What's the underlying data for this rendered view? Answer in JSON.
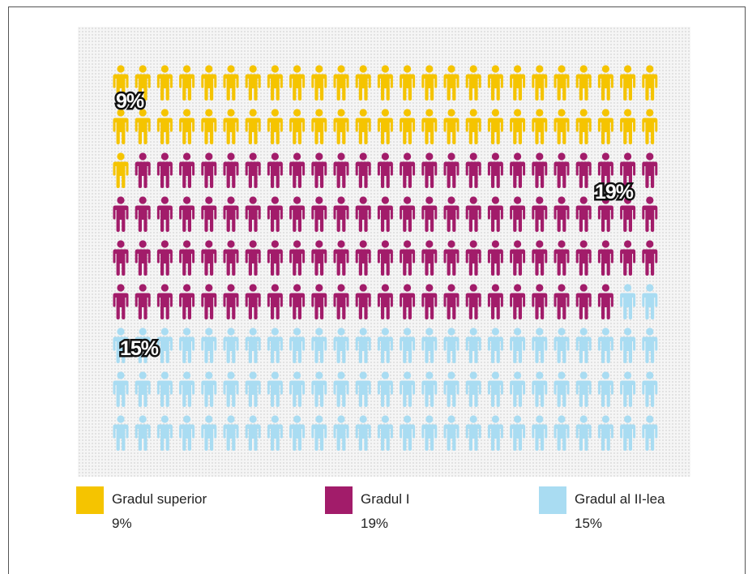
{
  "chart_data": {
    "type": "pictogram",
    "unit": "person",
    "grid_columns": 25,
    "grid_rows": 9,
    "categories": [
      "Gradul superior",
      "Gradul I",
      "Gradul al II-lea"
    ],
    "series": [
      {
        "name": "Gradul superior",
        "value_label": "9%",
        "value": 9,
        "icon_count": 51,
        "color": "#f5c400"
      },
      {
        "name": "Gradul I",
        "value_label": "19%",
        "value": 19,
        "icon_count": 97,
        "color": "#a21c6a"
      },
      {
        "name": "Gradul al II-lea",
        "value_label": "15%",
        "value": 15,
        "icon_count": 77,
        "color": "#a9dcf2"
      }
    ],
    "legend_position": "bottom"
  }
}
